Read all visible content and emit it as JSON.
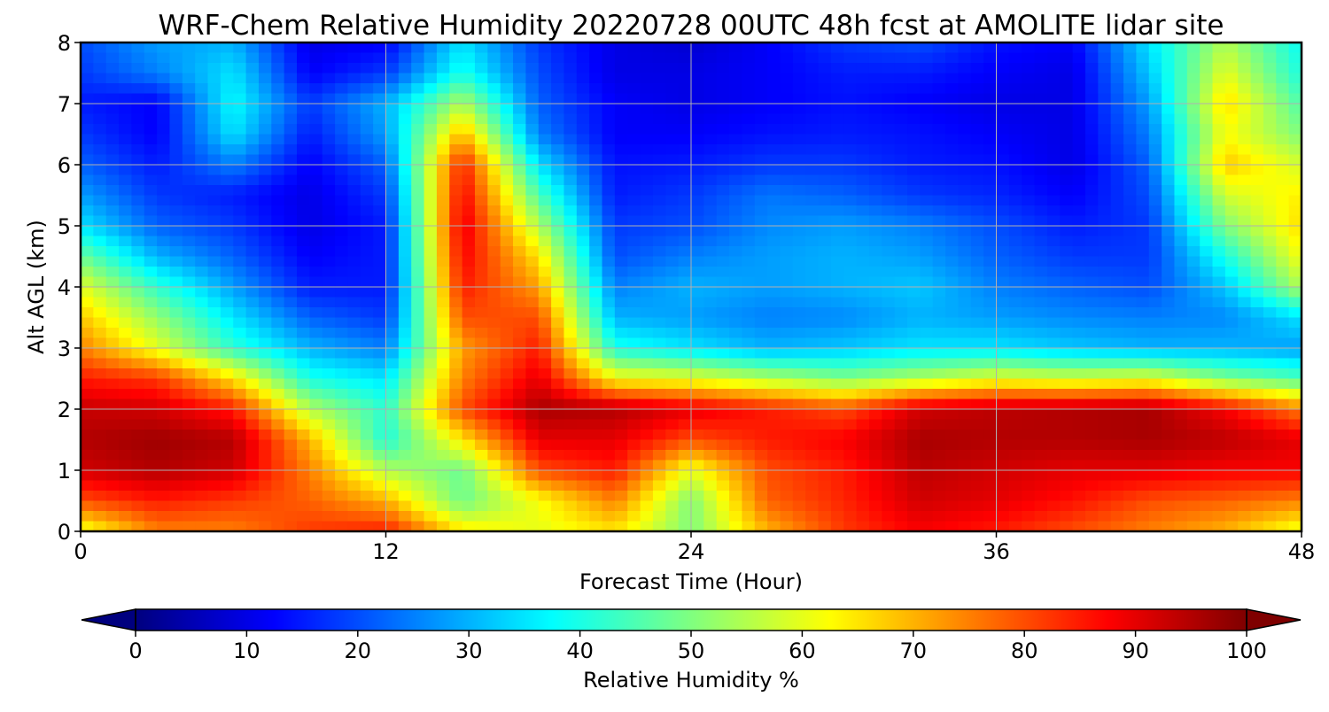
{
  "chart_data": {
    "type": "heatmap",
    "title": "WRF-Chem Relative Humidity 20220728 00UTC 48h fcst at AMOLITE lidar site",
    "xlabel": "Forecast Time (Hour)",
    "ylabel": "Alt AGL (km)",
    "xlim": [
      0,
      48
    ],
    "ylim": [
      0,
      8
    ],
    "xticks": [
      0,
      12,
      24,
      36,
      48
    ],
    "yticks": [
      0,
      1,
      2,
      3,
      4,
      5,
      6,
      7,
      8
    ],
    "grid": true,
    "colormap": "jet",
    "colorbar": {
      "label": "Relative Humidity %",
      "range": [
        0,
        100
      ],
      "ticks": [
        0,
        10,
        20,
        30,
        40,
        50,
        60,
        70,
        80,
        90,
        100
      ],
      "extend": "both",
      "orientation": "horizontal"
    },
    "x": [
      0,
      3,
      6,
      9,
      12,
      15,
      18,
      21,
      24,
      27,
      30,
      33,
      36,
      39,
      42,
      45,
      48
    ],
    "y": [
      0,
      0.5,
      1,
      1.5,
      2,
      2.5,
      3,
      3.5,
      4,
      4.5,
      5,
      5.5,
      6,
      6.5,
      7,
      7.5,
      8
    ],
    "z": [
      [
        60,
        75,
        75,
        82,
        85,
        65,
        60,
        65,
        50,
        70,
        82,
        88,
        85,
        80,
        75,
        70,
        60
      ],
      [
        80,
        85,
        82,
        78,
        70,
        48,
        62,
        75,
        50,
        78,
        84,
        92,
        90,
        86,
        80,
        78,
        75
      ],
      [
        92,
        95,
        92,
        75,
        55,
        48,
        80,
        85,
        60,
        80,
        85,
        94,
        92,
        90,
        90,
        88,
        88
      ],
      [
        95,
        97,
        95,
        70,
        40,
        65,
        90,
        90,
        80,
        85,
        88,
        96,
        95,
        95,
        96,
        94,
        90
      ],
      [
        93,
        92,
        85,
        55,
        42,
        80,
        96,
        95,
        90,
        85,
        80,
        92,
        94,
        95,
        96,
        88,
        75
      ],
      [
        85,
        82,
        65,
        40,
        35,
        75,
        90,
        62,
        60,
        55,
        50,
        55,
        60,
        58,
        60,
        50,
        45
      ],
      [
        75,
        60,
        42,
        30,
        25,
        72,
        85,
        40,
        35,
        30,
        32,
        35,
        35,
        32,
        30,
        30,
        28
      ],
      [
        68,
        52,
        35,
        22,
        18,
        80,
        80,
        30,
        28,
        25,
        26,
        30,
        28,
        26,
        25,
        26,
        35
      ],
      [
        60,
        42,
        28,
        15,
        15,
        85,
        72,
        25,
        30,
        28,
        30,
        32,
        25,
        22,
        20,
        32,
        55
      ],
      [
        48,
        30,
        22,
        12,
        15,
        88,
        65,
        20,
        25,
        28,
        30,
        28,
        22,
        18,
        18,
        40,
        62
      ],
      [
        35,
        22,
        18,
        10,
        15,
        90,
        55,
        18,
        20,
        26,
        28,
        25,
        20,
        15,
        18,
        50,
        66
      ],
      [
        28,
        18,
        15,
        10,
        18,
        88,
        45,
        15,
        18,
        24,
        22,
        18,
        16,
        12,
        20,
        58,
        64
      ],
      [
        22,
        15,
        25,
        12,
        22,
        85,
        35,
        14,
        15,
        18,
        18,
        15,
        14,
        10,
        22,
        68,
        58
      ],
      [
        18,
        12,
        35,
        15,
        28,
        70,
        25,
        12,
        12,
        14,
        15,
        14,
        12,
        10,
        25,
        62,
        50
      ],
      [
        15,
        12,
        38,
        18,
        30,
        55,
        22,
        12,
        10,
        12,
        14,
        12,
        10,
        10,
        28,
        66,
        45
      ],
      [
        18,
        25,
        35,
        12,
        18,
        40,
        20,
        10,
        10,
        12,
        15,
        15,
        12,
        10,
        32,
        60,
        40
      ],
      [
        20,
        28,
        30,
        10,
        12,
        35,
        18,
        10,
        8,
        12,
        18,
        20,
        14,
        12,
        35,
        55,
        38
      ]
    ]
  }
}
